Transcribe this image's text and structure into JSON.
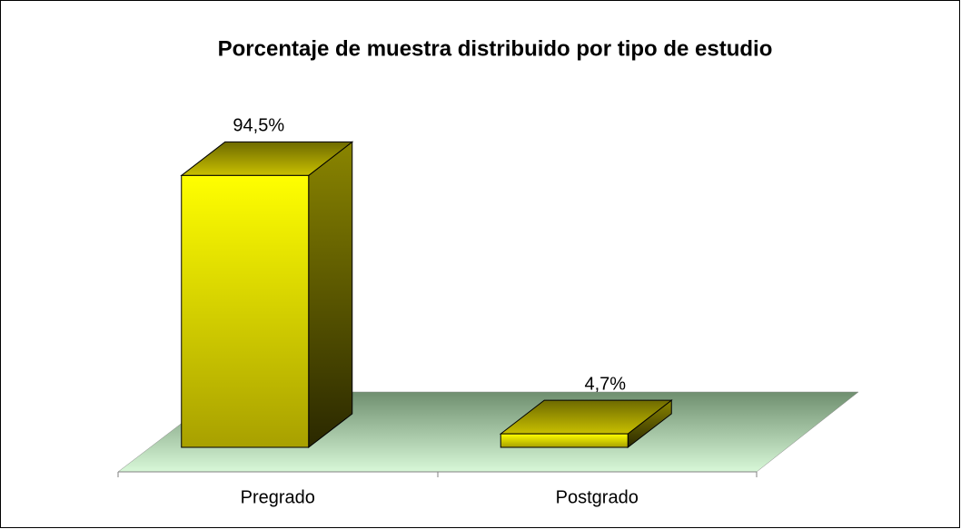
{
  "chart_data": {
    "type": "bar3d",
    "title": "Porcentaje de muestra distribuido por tipo de estudio",
    "categories": [
      "Pregrado",
      "Postgrado"
    ],
    "values": [
      94.5,
      4.7
    ],
    "value_labels": [
      "94,5%",
      "4,7%"
    ],
    "color": "#ffff00",
    "ylim": [
      0,
      100
    ]
  }
}
